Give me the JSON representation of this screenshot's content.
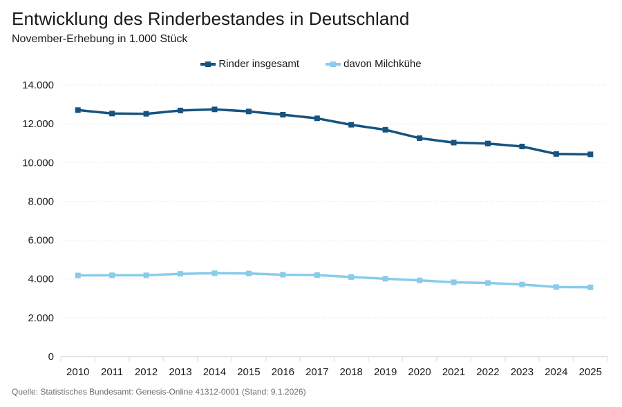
{
  "header": {
    "title": "Entwicklung des Rinderbestandes in Deutschland",
    "subtitle": "November-Erhebung in 1.000 Stück"
  },
  "footer": {
    "source": "Quelle: Statistisches Bundesamt: Genesis-Online 41312-0001 (Stand: 9.1.2026)"
  },
  "colors": {
    "series1": "#165380",
    "series2": "#89cbea",
    "grid": "#e9e9e9",
    "axis": "#e3e3e3",
    "text": "#1a1a1a",
    "muted": "#6e6e6e"
  },
  "chart_data": {
    "type": "line",
    "title": "Entwicklung des Rinderbestandes in Deutschland",
    "subtitle": "November-Erhebung in 1.000 Stück",
    "categories": [
      "2010",
      "2011",
      "2012",
      "2013",
      "2014",
      "2015",
      "2016",
      "2017",
      "2018",
      "2019",
      "2020",
      "2021",
      "2022",
      "2023",
      "2024",
      "2025"
    ],
    "series": [
      {
        "name": "Rinder insgesamt",
        "color": "#165380",
        "marker": "square",
        "values": [
          12706,
          12528,
          12516,
          12686,
          12742,
          12635,
          12468,
          12281,
          11949,
          11693,
          11260,
          11029,
          10984,
          10830,
          10445,
          10425
        ]
      },
      {
        "name": "davon Milchkühe",
        "color": "#89cbea",
        "marker": "square",
        "values": [
          4182,
          4190,
          4190,
          4268,
          4296,
          4285,
          4218,
          4199,
          4101,
          4012,
          3926,
          3830,
          3795,
          3715,
          3585,
          3570
        ]
      }
    ],
    "xlabel": "",
    "ylabel": "",
    "ylim": [
      0,
      14000
    ],
    "yticks": [
      {
        "value": 14000,
        "label": "14.000"
      },
      {
        "value": 12000,
        "label": "12.000"
      },
      {
        "value": 10000,
        "label": "10.000"
      },
      {
        "value": 8000,
        "label": "8.000"
      },
      {
        "value": 6000,
        "label": "6.000"
      },
      {
        "value": 4000,
        "label": "4.000"
      },
      {
        "value": 2000,
        "label": "2.000"
      },
      {
        "value": 0,
        "label": "0"
      }
    ],
    "grid": true,
    "grid_style": "dotted",
    "legend_position": "top-center"
  }
}
